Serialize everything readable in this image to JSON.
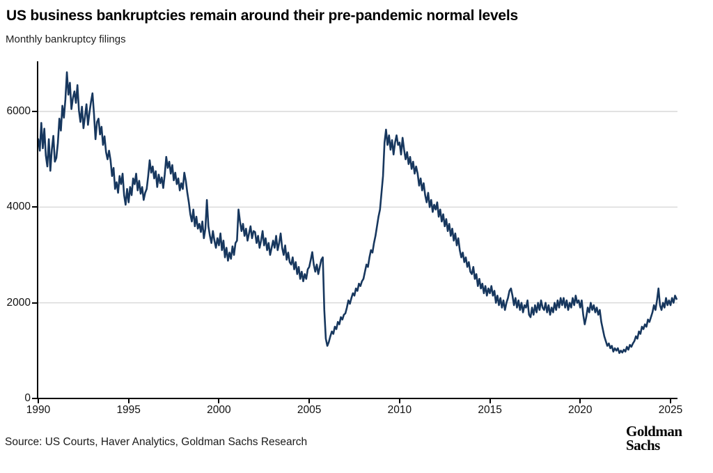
{
  "header": {
    "title": "US business bankruptcies remain around their pre-pandemic normal levels",
    "subtitle": "Monthly bankruptcy filings"
  },
  "footer": {
    "source": "Source: US Courts, Haver Analytics, Goldman Sachs Research",
    "logo_line1": "Goldman",
    "logo_line2": "Sachs"
  },
  "colors": {
    "line": "#17375E",
    "grid": "#D9D9D9",
    "axis": "#000000",
    "text": "#111111"
  },
  "chart_data": {
    "type": "line",
    "title": "US business bankruptcies remain around their pre-pandemic normal levels",
    "ylabel": "Monthly bankruptcy filings",
    "xlabel": "",
    "grid": "horizontal",
    "legend": "none",
    "ylim": [
      0,
      7000
    ],
    "xlim": [
      1990,
      2025.4
    ],
    "yticks": [
      0,
      2000,
      4000,
      6000
    ],
    "xticks": [
      1990,
      1995,
      2000,
      2005,
      2010,
      2015,
      2020,
      2025
    ],
    "x_start_month": "1990-01",
    "x_end_month": "2025-05",
    "x_frequency": "monthly",
    "series": [
      {
        "name": "Monthly business bankruptcy filings",
        "values": [
          5420,
          5180,
          5760,
          5230,
          5640,
          5080,
          4850,
          5420,
          4760,
          5210,
          5490,
          4950,
          5030,
          5340,
          5850,
          5600,
          6120,
          5870,
          6250,
          6820,
          6350,
          6600,
          6050,
          6280,
          6420,
          6180,
          6550,
          6020,
          5780,
          6100,
          5650,
          5890,
          6150,
          5720,
          5980,
          6200,
          6380,
          5950,
          5420,
          5780,
          5850,
          5520,
          5680,
          5300,
          5480,
          5150,
          5000,
          5180,
          4980,
          4650,
          4820,
          4380,
          4520,
          4300,
          4650,
          4480,
          4700,
          4250,
          4050,
          4380,
          4100,
          4420,
          4250,
          4600,
          4480,
          4700,
          4350,
          4550,
          4280,
          4420,
          4150,
          4300,
          4380,
          4650,
          4980,
          4720,
          4850,
          4600,
          4750,
          4420,
          4680,
          4500,
          4620,
          4400,
          4680,
          5050,
          4820,
          4950,
          4700,
          4880,
          4560,
          4720,
          4480,
          4600,
          4350,
          4500,
          4380,
          4720,
          4550,
          4300,
          4100,
          3850,
          3700,
          3950,
          3600,
          3800,
          3550,
          3650,
          3480,
          3700,
          3350,
          3550,
          4150,
          3600,
          3400,
          3250,
          3500,
          3300,
          3150,
          3350,
          3200,
          3450,
          3100,
          3300,
          2950,
          3150,
          2880,
          3050,
          2920,
          3180,
          3000,
          3250,
          3300,
          3950,
          3700,
          3500,
          3650,
          3400,
          3550,
          3300,
          3450,
          3600,
          3350,
          3500,
          3480,
          3250,
          3400,
          3150,
          3300,
          3500,
          3200,
          3350,
          3100,
          3250,
          3000,
          3150,
          3300,
          3150,
          3400,
          3100,
          3250,
          3450,
          3150,
          3000,
          3200,
          2900,
          3050,
          2850,
          2800,
          2950,
          2700,
          2850,
          2600,
          2750,
          2500,
          2650,
          2450,
          2600,
          2500,
          2700,
          2750,
          2900,
          3060,
          2800,
          2650,
          2800,
          2600,
          2750,
          2900,
          2950,
          1850,
          1250,
          1100,
          1180,
          1300,
          1400,
          1350,
          1500,
          1450,
          1600,
          1550,
          1700,
          1650,
          1750,
          1780,
          1900,
          2050,
          1980,
          2100,
          2200,
          2150,
          2300,
          2250,
          2400,
          2350,
          2450,
          2500,
          2650,
          2800,
          2750,
          2950,
          3100,
          3050,
          3250,
          3400,
          3600,
          3800,
          3950,
          4300,
          4650,
          5350,
          5620,
          5300,
          5500,
          5200,
          5400,
          5100,
          5350,
          5500,
          5300,
          5350,
          5100,
          5450,
          5200,
          5000,
          5150,
          4900,
          5050,
          4800,
          4950,
          4700,
          4850,
          4700,
          4450,
          4600,
          4350,
          4500,
          4250,
          4100,
          4300,
          4000,
          4150,
          3900,
          4050,
          3950,
          4100,
          3800,
          3950,
          3700,
          3850,
          3600,
          3750,
          3500,
          3650,
          3400,
          3550,
          3300,
          3450,
          3200,
          3350,
          3100,
          2950,
          3050,
          2850,
          2950,
          2750,
          2850,
          2650,
          2600,
          2750,
          2500,
          2600,
          2350,
          2500,
          2300,
          2400,
          2200,
          2350,
          2150,
          2300,
          2200,
          2350,
          2150,
          2250,
          2000,
          2150,
          1950,
          2100,
          1900,
          2050,
          1850,
          2000,
          2100,
          2250,
          2300,
          2150,
          1950,
          2100,
          1900,
          2050,
          1850,
          2000,
          1800,
          1950,
          1900,
          2050,
          1750,
          1700,
          1900,
          1750,
          1950,
          1800,
          2000,
          1850,
          2050,
          1900,
          1850,
          2000,
          1800,
          1950,
          1750,
          1900,
          1800,
          2000,
          1850,
          2050,
          1900,
          2100,
          1950,
          2100,
          1900,
          2050,
          1850,
          2000,
          1900,
          2100,
          1950,
          2150,
          2000,
          2050,
          1900,
          2050,
          1750,
          1550,
          1700,
          1900,
          1800,
          2000,
          1850,
          1950,
          1800,
          1900,
          1750,
          1850,
          1600,
          1450,
          1300,
          1200,
          1100,
          1150,
          1050,
          1100,
          980,
          1050,
          1000,
          1050,
          950,
          1000,
          960,
          1020,
          980,
          1080,
          1020,
          1120,
          1080,
          1150,
          1200,
          1300,
          1250,
          1400,
          1350,
          1500,
          1450,
          1550,
          1500,
          1650,
          1600,
          1700,
          1800,
          1950,
          1850,
          2050,
          2300,
          1950,
          1850,
          2000,
          1900,
          2100,
          1950,
          2050,
          1950,
          2100,
          2000,
          2150,
          2080
        ]
      }
    ]
  }
}
